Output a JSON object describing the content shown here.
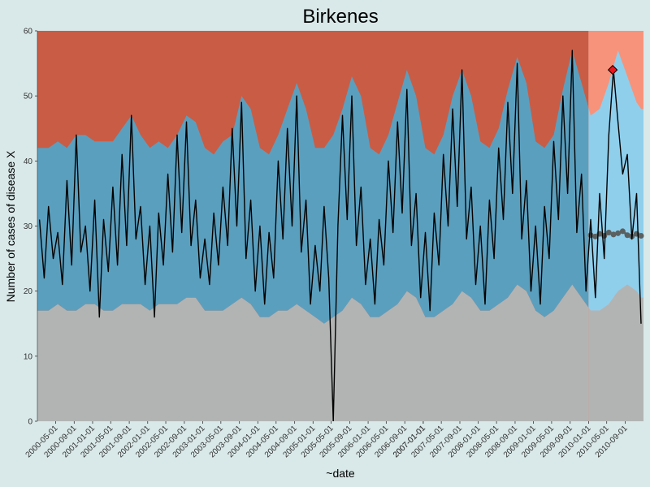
{
  "chart_data": {
    "type": "line",
    "title": "Birkenes",
    "xlabel": "~date",
    "ylabel": "Number of cases of disease X",
    "ylim": [
      0,
      60
    ],
    "y_ticks": [
      0,
      10,
      20,
      30,
      40,
      50,
      60
    ],
    "x_range": [
      "2000-01-01",
      "2010-12-31"
    ],
    "x_ticks": [
      "2000-05-01",
      "2000-09-01",
      "2001-01-01",
      "2001-05-01",
      "2001-09-01",
      "2002-01-01",
      "2002-05-01",
      "2002-09-01",
      "2003-01-01",
      "2003-05-01",
      "2003-09-01",
      "2004-01-01",
      "2004-05-01",
      "2004-09-01",
      "2005-01-01",
      "2005-05-01",
      "2005-09-01",
      "2006-01-01",
      "2006-05-01",
      "2006-09-01",
      "2007-01-01",
      "2007-05-01",
      "2007-09-01",
      "2007-01-01",
      "2008-01-01",
      "2008-05-01",
      "2008-09-01",
      "2009-01-01",
      "2009-05-01",
      "2009-09-01",
      "2010-01-01",
      "2010-05-01",
      "2010-09-01"
    ],
    "grid": false,
    "forecast_start": "2010-01-01",
    "colors": {
      "background": "#d9e8e8",
      "high_zone_history": "#c95c45",
      "high_zone_forecast": "#f7937a",
      "normal_band_history": "#5b9fbe",
      "normal_band_forecast": "#8fcfec",
      "low_zone_history": "#b2b4b4",
      "observed_line": "#000000",
      "forecast_baseline": "#5a6060",
      "alert_marker": "#e8141e"
    },
    "alert": {
      "date": "2010-06-10",
      "value": 54
    },
    "threshold_bands": [
      {
        "date": "2000-01",
        "low": 17,
        "high": 42
      },
      {
        "date": "2000-03",
        "low": 17,
        "high": 42
      },
      {
        "date": "2000-05",
        "low": 18,
        "high": 43
      },
      {
        "date": "2000-07",
        "low": 17,
        "high": 42
      },
      {
        "date": "2000-09",
        "low": 17,
        "high": 44
      },
      {
        "date": "2000-11",
        "low": 18,
        "high": 44
      },
      {
        "date": "2001-01",
        "low": 18,
        "high": 43
      },
      {
        "date": "2001-03",
        "low": 17,
        "high": 43
      },
      {
        "date": "2001-05",
        "low": 17,
        "high": 43
      },
      {
        "date": "2001-07",
        "low": 18,
        "high": 45
      },
      {
        "date": "2001-09",
        "low": 18,
        "high": 47
      },
      {
        "date": "2001-11",
        "low": 18,
        "high": 44
      },
      {
        "date": "2002-01",
        "low": 17,
        "high": 42
      },
      {
        "date": "2002-03",
        "low": 18,
        "high": 43
      },
      {
        "date": "2002-05",
        "low": 18,
        "high": 42
      },
      {
        "date": "2002-07",
        "low": 18,
        "high": 44
      },
      {
        "date": "2002-09",
        "low": 19,
        "high": 47
      },
      {
        "date": "2002-11",
        "low": 19,
        "high": 46
      },
      {
        "date": "2003-01",
        "low": 17,
        "high": 42
      },
      {
        "date": "2003-03",
        "low": 17,
        "high": 41
      },
      {
        "date": "2003-05",
        "low": 17,
        "high": 43
      },
      {
        "date": "2003-07",
        "low": 18,
        "high": 44
      },
      {
        "date": "2003-09",
        "low": 19,
        "high": 50
      },
      {
        "date": "2003-11",
        "low": 18,
        "high": 48
      },
      {
        "date": "2004-01",
        "low": 16,
        "high": 42
      },
      {
        "date": "2004-03",
        "low": 16,
        "high": 41
      },
      {
        "date": "2004-05",
        "low": 17,
        "high": 44
      },
      {
        "date": "2004-07",
        "low": 17,
        "high": 48
      },
      {
        "date": "2004-09",
        "low": 18,
        "high": 52
      },
      {
        "date": "2004-11",
        "low": 17,
        "high": 48
      },
      {
        "date": "2005-01",
        "low": 16,
        "high": 42
      },
      {
        "date": "2005-03",
        "low": 15,
        "high": 42
      },
      {
        "date": "2005-05",
        "low": 16,
        "high": 44
      },
      {
        "date": "2005-07",
        "low": 17,
        "high": 48
      },
      {
        "date": "2005-09",
        "low": 19,
        "high": 53
      },
      {
        "date": "2005-11",
        "low": 18,
        "high": 50
      },
      {
        "date": "2006-01",
        "low": 16,
        "high": 42
      },
      {
        "date": "2006-03",
        "low": 16,
        "high": 41
      },
      {
        "date": "2006-05",
        "low": 17,
        "high": 44
      },
      {
        "date": "2006-07",
        "low": 18,
        "high": 49
      },
      {
        "date": "2006-09",
        "low": 20,
        "high": 54
      },
      {
        "date": "2006-11",
        "low": 19,
        "high": 50
      },
      {
        "date": "2007-01",
        "low": 16,
        "high": 42
      },
      {
        "date": "2007-03",
        "low": 16,
        "high": 41
      },
      {
        "date": "2007-05",
        "low": 17,
        "high": 44
      },
      {
        "date": "2007-07",
        "low": 18,
        "high": 50
      },
      {
        "date": "2007-09",
        "low": 20,
        "high": 54
      },
      {
        "date": "2007-11",
        "low": 19,
        "high": 50
      },
      {
        "date": "2008-01",
        "low": 17,
        "high": 43
      },
      {
        "date": "2008-03",
        "low": 17,
        "high": 42
      },
      {
        "date": "2008-05",
        "low": 18,
        "high": 45
      },
      {
        "date": "2008-07",
        "low": 19,
        "high": 51
      },
      {
        "date": "2008-09",
        "low": 21,
        "high": 56
      },
      {
        "date": "2008-11",
        "low": 20,
        "high": 52
      },
      {
        "date": "2009-01",
        "low": 17,
        "high": 43
      },
      {
        "date": "2009-03",
        "low": 16,
        "high": 42
      },
      {
        "date": "2009-05",
        "low": 17,
        "high": 44
      },
      {
        "date": "2009-07",
        "low": 19,
        "high": 51
      },
      {
        "date": "2009-09",
        "low": 21,
        "high": 57
      },
      {
        "date": "2009-11",
        "low": 19,
        "high": 52
      },
      {
        "date": "2010-01",
        "low": 17,
        "high": 47
      },
      {
        "date": "2010-03",
        "low": 17,
        "high": 48
      },
      {
        "date": "2010-05",
        "low": 18,
        "high": 52
      },
      {
        "date": "2010-07",
        "low": 20,
        "high": 57
      },
      {
        "date": "2010-09",
        "low": 21,
        "high": 53
      },
      {
        "date": "2010-11",
        "low": 20,
        "high": 49
      },
      {
        "date": "2010-12",
        "low": 19,
        "high": 48
      }
    ],
    "series": [
      {
        "role": "observed",
        "color": "#000000",
        "points": [
          {
            "date": "2000-01",
            "value": 31
          },
          {
            "date": "2000-02",
            "value": 22
          },
          {
            "date": "2000-03",
            "value": 33
          },
          {
            "date": "2000-04",
            "value": 25
          },
          {
            "date": "2000-05",
            "value": 29
          },
          {
            "date": "2000-06",
            "value": 21
          },
          {
            "date": "2000-07",
            "value": 37
          },
          {
            "date": "2000-08",
            "value": 24
          },
          {
            "date": "2000-09",
            "value": 44
          },
          {
            "date": "2000-10",
            "value": 26
          },
          {
            "date": "2000-11",
            "value": 30
          },
          {
            "date": "2000-12",
            "value": 20
          },
          {
            "date": "2001-01",
            "value": 34
          },
          {
            "date": "2001-02",
            "value": 16
          },
          {
            "date": "2001-03",
            "value": 31
          },
          {
            "date": "2001-04",
            "value": 23
          },
          {
            "date": "2001-05",
            "value": 36
          },
          {
            "date": "2001-06",
            "value": 24
          },
          {
            "date": "2001-07",
            "value": 41
          },
          {
            "date": "2001-08",
            "value": 27
          },
          {
            "date": "2001-09",
            "value": 47
          },
          {
            "date": "2001-10",
            "value": 28
          },
          {
            "date": "2001-11",
            "value": 33
          },
          {
            "date": "2001-12",
            "value": 21
          },
          {
            "date": "2002-01",
            "value": 30
          },
          {
            "date": "2002-02",
            "value": 16
          },
          {
            "date": "2002-03",
            "value": 32
          },
          {
            "date": "2002-04",
            "value": 24
          },
          {
            "date": "2002-05",
            "value": 38
          },
          {
            "date": "2002-06",
            "value": 26
          },
          {
            "date": "2002-07",
            "value": 44
          },
          {
            "date": "2002-08",
            "value": 29
          },
          {
            "date": "2002-09",
            "value": 46
          },
          {
            "date": "2002-10",
            "value": 27
          },
          {
            "date": "2002-11",
            "value": 34
          },
          {
            "date": "2002-12",
            "value": 22
          },
          {
            "date": "2003-01",
            "value": 28
          },
          {
            "date": "2003-02",
            "value": 21
          },
          {
            "date": "2003-03",
            "value": 32
          },
          {
            "date": "2003-04",
            "value": 24
          },
          {
            "date": "2003-05",
            "value": 36
          },
          {
            "date": "2003-06",
            "value": 27
          },
          {
            "date": "2003-07",
            "value": 45
          },
          {
            "date": "2003-08",
            "value": 30
          },
          {
            "date": "2003-09",
            "value": 49
          },
          {
            "date": "2003-10",
            "value": 25
          },
          {
            "date": "2003-11",
            "value": 34
          },
          {
            "date": "2003-12",
            "value": 20
          },
          {
            "date": "2004-01",
            "value": 30
          },
          {
            "date": "2004-02",
            "value": 18
          },
          {
            "date": "2004-03",
            "value": 29
          },
          {
            "date": "2004-04",
            "value": 22
          },
          {
            "date": "2004-05",
            "value": 40
          },
          {
            "date": "2004-06",
            "value": 28
          },
          {
            "date": "2004-07",
            "value": 45
          },
          {
            "date": "2004-08",
            "value": 30
          },
          {
            "date": "2004-09",
            "value": 50
          },
          {
            "date": "2004-10",
            "value": 26
          },
          {
            "date": "2004-11",
            "value": 34
          },
          {
            "date": "2004-12",
            "value": 18
          },
          {
            "date": "2005-01",
            "value": 27
          },
          {
            "date": "2005-02",
            "value": 20
          },
          {
            "date": "2005-03",
            "value": 33
          },
          {
            "date": "2005-04",
            "value": 22
          },
          {
            "date": "2005-05",
            "value": 0
          },
          {
            "date": "2005-06",
            "value": 30
          },
          {
            "date": "2005-07",
            "value": 47
          },
          {
            "date": "2005-08",
            "value": 31
          },
          {
            "date": "2005-09",
            "value": 50
          },
          {
            "date": "2005-10",
            "value": 27
          },
          {
            "date": "2005-11",
            "value": 36
          },
          {
            "date": "2005-12",
            "value": 21
          },
          {
            "date": "2006-01",
            "value": 28
          },
          {
            "date": "2006-02",
            "value": 18
          },
          {
            "date": "2006-03",
            "value": 31
          },
          {
            "date": "2006-04",
            "value": 24
          },
          {
            "date": "2006-05",
            "value": 40
          },
          {
            "date": "2006-06",
            "value": 29
          },
          {
            "date": "2006-07",
            "value": 46
          },
          {
            "date": "2006-08",
            "value": 32
          },
          {
            "date": "2006-09",
            "value": 51
          },
          {
            "date": "2006-10",
            "value": 27
          },
          {
            "date": "2006-11",
            "value": 35
          },
          {
            "date": "2006-12",
            "value": 19
          },
          {
            "date": "2007-01",
            "value": 29
          },
          {
            "date": "2007-02",
            "value": 17
          },
          {
            "date": "2007-03",
            "value": 32
          },
          {
            "date": "2007-04",
            "value": 24
          },
          {
            "date": "2007-05",
            "value": 41
          },
          {
            "date": "2007-06",
            "value": 30
          },
          {
            "date": "2007-07",
            "value": 48
          },
          {
            "date": "2007-08",
            "value": 33
          },
          {
            "date": "2007-09",
            "value": 54
          },
          {
            "date": "2007-10",
            "value": 28
          },
          {
            "date": "2007-11",
            "value": 36
          },
          {
            "date": "2007-12",
            "value": 21
          },
          {
            "date": "2008-01",
            "value": 30
          },
          {
            "date": "2008-02",
            "value": 18
          },
          {
            "date": "2008-03",
            "value": 34
          },
          {
            "date": "2008-04",
            "value": 25
          },
          {
            "date": "2008-05",
            "value": 42
          },
          {
            "date": "2008-06",
            "value": 31
          },
          {
            "date": "2008-07",
            "value": 49
          },
          {
            "date": "2008-08",
            "value": 35
          },
          {
            "date": "2008-09",
            "value": 55
          },
          {
            "date": "2008-10",
            "value": 28
          },
          {
            "date": "2008-11",
            "value": 37
          },
          {
            "date": "2008-12",
            "value": 20
          },
          {
            "date": "2009-01",
            "value": 30
          },
          {
            "date": "2009-02",
            "value": 18
          },
          {
            "date": "2009-03",
            "value": 33
          },
          {
            "date": "2009-04",
            "value": 25
          },
          {
            "date": "2009-05",
            "value": 43
          },
          {
            "date": "2009-06",
            "value": 31
          },
          {
            "date": "2009-07",
            "value": 50
          },
          {
            "date": "2009-08",
            "value": 35
          },
          {
            "date": "2009-09",
            "value": 57
          },
          {
            "date": "2009-10",
            "value": 29
          },
          {
            "date": "2009-11",
            "value": 38
          },
          {
            "date": "2009-12",
            "value": 20
          },
          {
            "date": "2010-01",
            "value": 31
          },
          {
            "date": "2010-02",
            "value": 19
          },
          {
            "date": "2010-03",
            "value": 35
          },
          {
            "date": "2010-04",
            "value": 25
          },
          {
            "date": "2010-05",
            "value": 44
          },
          {
            "date": "2010-06",
            "value": 54
          },
          {
            "date": "2010-07",
            "value": 46
          },
          {
            "date": "2010-08",
            "value": 38
          },
          {
            "date": "2010-09",
            "value": 41
          },
          {
            "date": "2010-10",
            "value": 28
          },
          {
            "date": "2010-11",
            "value": 35
          },
          {
            "date": "2010-12",
            "value": 15
          }
        ]
      },
      {
        "role": "forecast_baseline",
        "color": "#5a6060",
        "points": [
          {
            "date": "2010-01",
            "value": 28.6
          },
          {
            "date": "2010-02",
            "value": 28.4
          },
          {
            "date": "2010-03",
            "value": 28.8
          },
          {
            "date": "2010-04",
            "value": 28.5
          },
          {
            "date": "2010-05",
            "value": 29.0
          },
          {
            "date": "2010-06",
            "value": 28.7
          },
          {
            "date": "2010-07",
            "value": 28.9
          },
          {
            "date": "2010-08",
            "value": 29.2
          },
          {
            "date": "2010-09",
            "value": 28.6
          },
          {
            "date": "2010-10",
            "value": 28.4
          },
          {
            "date": "2010-11",
            "value": 28.8
          },
          {
            "date": "2010-12",
            "value": 28.5
          }
        ]
      }
    ]
  }
}
